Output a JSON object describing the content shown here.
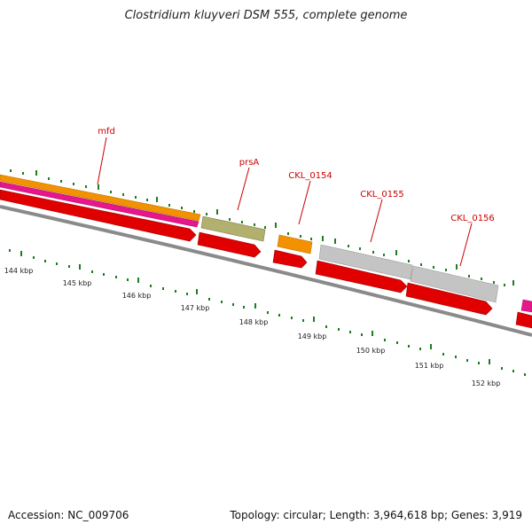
{
  "title": "Clostridium kluyveri DSM 555, complete genome",
  "footer": {
    "accession": "Accession: NC_009706",
    "summary": "Topology: circular; Length: 3,964,618 bp; Genes: 3,919"
  },
  "gene_labels": [
    "mfd",
    "prsA",
    "CKL_0154",
    "CKL_0155",
    "CKL_0156"
  ],
  "scale_labels": [
    "144 kbp",
    "145 kbp",
    "146 kbp",
    "147 kbp",
    "148 kbp",
    "149 kbp",
    "150 kbp",
    "151 kbp",
    "152 kbp"
  ],
  "colors": {
    "orange": "#f39200",
    "magenta": "#e6168b",
    "red": "#e00000",
    "olive": "#b2b06e",
    "gray": "#c4c4c4",
    "backbone": "#8a8a8a",
    "tick": "#1e7d1e",
    "label": "#cc0000"
  }
}
